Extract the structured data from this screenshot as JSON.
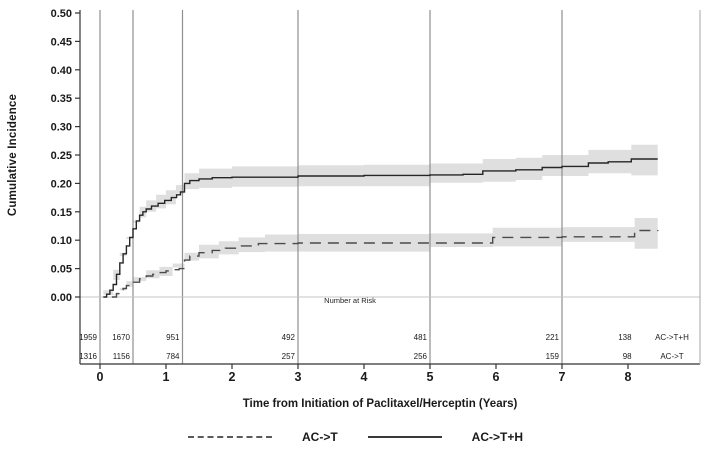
{
  "figure": {
    "ylabel": "Cumulative Incidence",
    "xlabel": "Time from Initiation of Paclitaxel/Herceptin (Years)",
    "risk_title": "Number at Risk"
  },
  "legend": [
    {
      "label": "AC->T",
      "style": "dashed"
    },
    {
      "label": "AC->T+H",
      "style": "solid"
    }
  ],
  "colors": {
    "solid_curve": "#262626",
    "dashed_curve": "#4a4a4a",
    "band_fill": "#dcdcdc",
    "ref_line": "#8f8f8f",
    "zero_line": "#c4c4c4",
    "axis": "#333333",
    "right_border": "#b3b3b3"
  },
  "chart_data": {
    "type": "line",
    "title": "",
    "xlabel": "Time from Initiation of Paclitaxel/Herceptin (Years)",
    "ylabel": "Cumulative Incidence",
    "xlim": [
      -0.3,
      9.1
    ],
    "ylim": [
      0,
      0.5
    ],
    "xticks": [
      "0",
      "1",
      "2",
      "3",
      "4",
      "5",
      "6",
      "7",
      "8"
    ],
    "ytick_values": [
      0.0,
      0.05,
      0.1,
      0.15,
      0.2,
      0.25,
      0.3,
      0.35,
      0.4,
      0.45,
      0.5
    ],
    "ytick_labels": [
      "0.00",
      "0.05",
      "0.10",
      "0.15",
      "0.20",
      "0.25",
      "0.30",
      "0.35",
      "0.40",
      "0.45",
      "0.50"
    ],
    "grid": "vertical-reference-lines",
    "reference_line_times": [
      0,
      0.5,
      1.25,
      3,
      5,
      7
    ],
    "legend_position": "bottom",
    "series": [
      {
        "name": "AC->T+H",
        "style": "solid",
        "points": [
          [
            0.05,
            0
          ],
          [
            0.1,
            0.005
          ],
          [
            0.15,
            0.012
          ],
          [
            0.2,
            0.022
          ],
          [
            0.25,
            0.04
          ],
          [
            0.3,
            0.06
          ],
          [
            0.35,
            0.076
          ],
          [
            0.4,
            0.09
          ],
          [
            0.45,
            0.105
          ],
          [
            0.5,
            0.12
          ],
          [
            0.55,
            0.134
          ],
          [
            0.6,
            0.144
          ],
          [
            0.65,
            0.15
          ],
          [
            0.7,
            0.155
          ],
          [
            0.78,
            0.16
          ],
          [
            0.88,
            0.165
          ],
          [
            0.98,
            0.17
          ],
          [
            1.08,
            0.175
          ],
          [
            1.16,
            0.18
          ],
          [
            1.22,
            0.185
          ],
          [
            1.28,
            0.2
          ],
          [
            1.36,
            0.205
          ],
          [
            1.5,
            0.208
          ],
          [
            1.7,
            0.21
          ],
          [
            2.0,
            0.211
          ],
          [
            3.0,
            0.213
          ],
          [
            4.0,
            0.214
          ],
          [
            5.0,
            0.215
          ],
          [
            5.5,
            0.216
          ],
          [
            5.8,
            0.222
          ],
          [
            6.3,
            0.224
          ],
          [
            6.7,
            0.228
          ],
          [
            7.0,
            0.23
          ],
          [
            7.4,
            0.236
          ],
          [
            7.7,
            0.238
          ],
          [
            8.05,
            0.243
          ],
          [
            8.45,
            0.243
          ]
        ],
        "band": [
          [
            0.05,
            0.0,
            0.004
          ],
          [
            0.2,
            0.012,
            0.03
          ],
          [
            0.3,
            0.048,
            0.072
          ],
          [
            0.4,
            0.078,
            0.102
          ],
          [
            0.5,
            0.106,
            0.134
          ],
          [
            0.6,
            0.131,
            0.159
          ],
          [
            0.7,
            0.14,
            0.17
          ],
          [
            0.85,
            0.15,
            0.18
          ],
          [
            1.0,
            0.156,
            0.188
          ],
          [
            1.15,
            0.163,
            0.197
          ],
          [
            1.28,
            0.182,
            0.218
          ],
          [
            1.5,
            0.19,
            0.226
          ],
          [
            2.0,
            0.192,
            0.23
          ],
          [
            3.0,
            0.194,
            0.232
          ],
          [
            4.0,
            0.195,
            0.233
          ],
          [
            5.0,
            0.195,
            0.235
          ],
          [
            5.8,
            0.201,
            0.243
          ],
          [
            6.3,
            0.203,
            0.245
          ],
          [
            6.7,
            0.206,
            0.25
          ],
          [
            7.4,
            0.213,
            0.259
          ],
          [
            8.05,
            0.218,
            0.268
          ],
          [
            8.45,
            0.214,
            0.272
          ]
        ]
      },
      {
        "name": "AC->T",
        "style": "dashed",
        "points": [
          [
            0.18,
            0
          ],
          [
            0.25,
            0.006
          ],
          [
            0.3,
            0.01
          ],
          [
            0.35,
            0.015
          ],
          [
            0.4,
            0.02
          ],
          [
            0.5,
            0.026
          ],
          [
            0.6,
            0.032
          ],
          [
            0.7,
            0.037
          ],
          [
            0.8,
            0.04
          ],
          [
            0.9,
            0.043
          ],
          [
            1.0,
            0.046
          ],
          [
            1.1,
            0.048
          ],
          [
            1.2,
            0.05
          ],
          [
            1.28,
            0.065
          ],
          [
            1.36,
            0.072
          ],
          [
            1.5,
            0.078
          ],
          [
            1.7,
            0.082
          ],
          [
            1.9,
            0.086
          ],
          [
            2.1,
            0.09
          ],
          [
            2.4,
            0.094
          ],
          [
            3.0,
            0.095
          ],
          [
            5.0,
            0.095
          ],
          [
            5.95,
            0.105
          ],
          [
            7.0,
            0.106
          ],
          [
            8.1,
            0.117
          ],
          [
            8.45,
            0.118
          ]
        ],
        "band": [
          [
            0.18,
            0.0,
            0.003
          ],
          [
            0.3,
            0.005,
            0.016
          ],
          [
            0.4,
            0.012,
            0.028
          ],
          [
            0.5,
            0.018,
            0.035
          ],
          [
            0.7,
            0.028,
            0.047
          ],
          [
            0.9,
            0.033,
            0.053
          ],
          [
            1.1,
            0.037,
            0.059
          ],
          [
            1.28,
            0.052,
            0.078
          ],
          [
            1.5,
            0.064,
            0.092
          ],
          [
            1.8,
            0.068,
            0.098
          ],
          [
            2.1,
            0.075,
            0.105
          ],
          [
            2.5,
            0.079,
            0.11
          ],
          [
            3.0,
            0.08,
            0.111
          ],
          [
            5.0,
            0.08,
            0.112
          ],
          [
            5.95,
            0.088,
            0.122
          ],
          [
            7.0,
            0.089,
            0.123
          ],
          [
            8.1,
            0.097,
            0.139
          ],
          [
            8.45,
            0.085,
            0.148
          ]
        ]
      }
    ],
    "number_at_risk": {
      "title": "Number at Risk",
      "times": [
        0,
        0.5,
        1.25,
        3,
        5,
        7,
        8.1
      ],
      "rows": [
        {
          "label": "AC->T+H",
          "values": [
            "1959",
            "1670",
            "951",
            "492",
            "481",
            "221",
            "138"
          ]
        },
        {
          "label": "AC->T",
          "values": [
            "1316",
            "1156",
            "784",
            "257",
            "256",
            "159",
            "98"
          ]
        }
      ]
    }
  }
}
